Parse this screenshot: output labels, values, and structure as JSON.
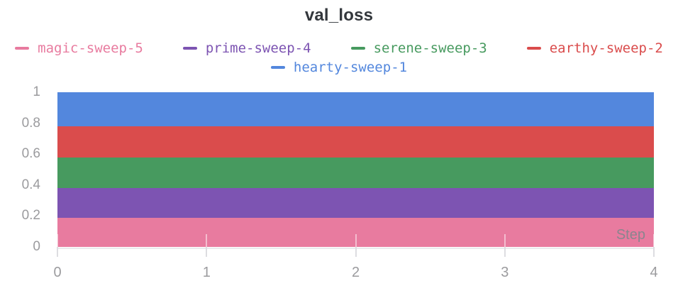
{
  "panel": {
    "title": "val_loss"
  },
  "chart_data": {
    "type": "area",
    "title": "val_loss",
    "xlabel": "Step",
    "ylabel": "",
    "xlim": [
      0,
      4
    ],
    "ylim": [
      0,
      1
    ],
    "grid": false,
    "legend_position": "top",
    "fill": "to-zero",
    "x": [
      0,
      1,
      2,
      3,
      4
    ],
    "series": [
      {
        "name": "magic-sweep-5",
        "color": "#E87B9F",
        "values": [
          0.19,
          0.19,
          0.19,
          0.19,
          0.19
        ]
      },
      {
        "name": "prime-sweep-4",
        "color": "#7D54B2",
        "values": [
          0.38,
          0.38,
          0.38,
          0.38,
          0.38
        ]
      },
      {
        "name": "serene-sweep-3",
        "color": "#479A5F",
        "values": [
          0.58,
          0.58,
          0.58,
          0.58,
          0.58
        ]
      },
      {
        "name": "earthy-sweep-2",
        "color": "#DA4C4C",
        "values": [
          0.78,
          0.78,
          0.78,
          0.78,
          0.78
        ]
      },
      {
        "name": "hearty-sweep-1",
        "color": "#5387DD",
        "values": [
          1.0,
          1.0,
          1.0,
          1.0,
          1.0
        ]
      }
    ],
    "xticks": {
      "values": [
        0,
        1,
        2,
        3,
        4
      ],
      "labels": [
        "0",
        "1",
        "2",
        "3",
        "4"
      ]
    },
    "yticks": {
      "values": [
        0,
        0.2,
        0.4,
        0.6,
        0.8,
        1
      ],
      "labels": [
        "0",
        "0.2",
        "0.4",
        "0.6",
        "0.8",
        "1"
      ]
    }
  },
  "colors": {
    "title_text": "#33373c",
    "axis_text": "#9b9b9e",
    "step_label_text": "#8a858e",
    "tick_line": "#dddde1"
  }
}
